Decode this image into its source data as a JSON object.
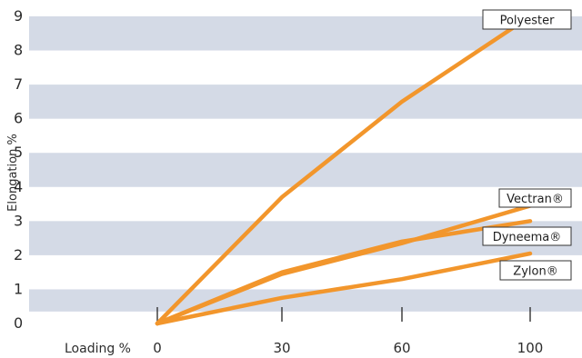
{
  "chart_data": {
    "type": "line",
    "xlabel": "Loading %",
    "ylabel": "Elongation %",
    "title": "",
    "xticks": [
      0,
      30,
      60,
      100
    ],
    "yticks": [
      0,
      1,
      2,
      3,
      4,
      5,
      6,
      7,
      8,
      9
    ],
    "xlim": [
      0,
      100
    ],
    "ylim": [
      0,
      9
    ],
    "grid": "alternating horizontal bands",
    "line_color": "#F2962C",
    "band_color": "#D4DAE6",
    "series": [
      {
        "name": "Polyester",
        "x": [
          0,
          30,
          60,
          100
        ],
        "y": [
          0,
          3.7,
          6.5,
          9.0
        ]
      },
      {
        "name": "Vectran®",
        "x": [
          0,
          30,
          60,
          100
        ],
        "y": [
          0,
          1.45,
          2.35,
          3.45
        ]
      },
      {
        "name": "Dyneema®",
        "x": [
          0,
          30,
          60,
          100
        ],
        "y": [
          0,
          1.5,
          2.4,
          3.0
        ]
      },
      {
        "name": "Zylon®",
        "x": [
          0,
          30,
          60,
          100
        ],
        "y": [
          0,
          0.75,
          1.3,
          2.05
        ]
      }
    ]
  }
}
